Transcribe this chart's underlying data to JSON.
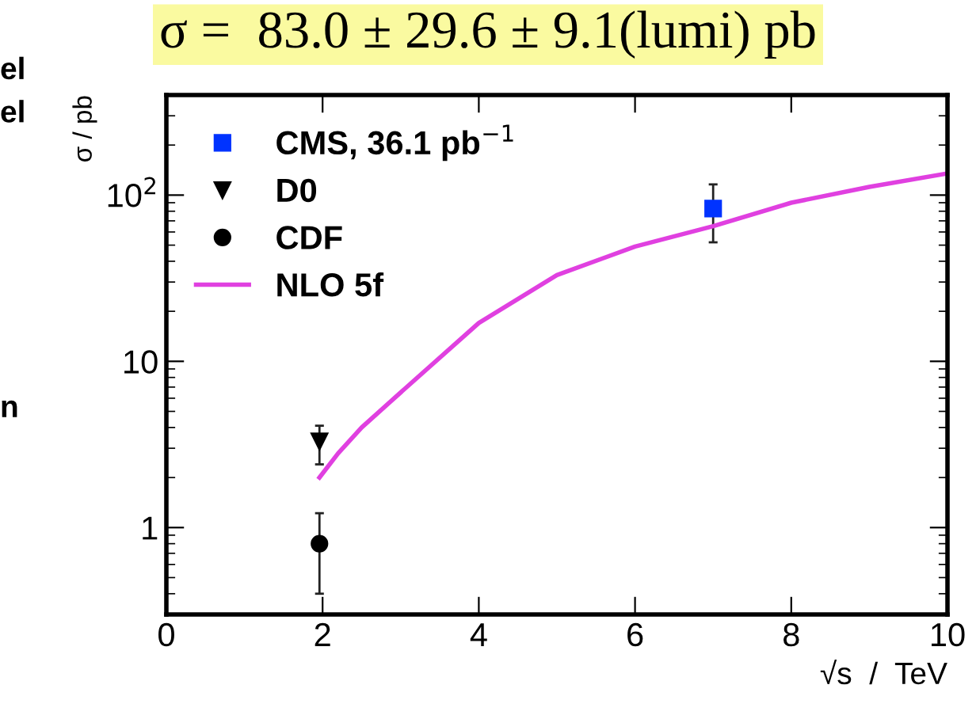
{
  "chart_data": {
    "type": "scatter",
    "title": "σ =  83.0 ± 29.6 ± 9.1(lumi) pb",
    "xlabel": "√s  /  TeV",
    "ylabel": "σ / pb",
    "log": "y",
    "xlim": [
      0,
      10
    ],
    "ylim": [
      0.3,
      400
    ],
    "xticks": [
      0,
      2,
      4,
      6,
      8,
      10
    ],
    "yticks": [
      1,
      10,
      {
        "value": 100,
        "label": "10$^{2}$"
      }
    ],
    "grid": false,
    "legend": "top left",
    "annotations": [
      "el",
      "el",
      "n"
    ],
    "series": [
      {
        "name": "CMS, 36.1 pb$^{−1}$",
        "marker": "square",
        "color": "#0033ff",
        "x": [
          7
        ],
        "values": [
          83
        ],
        "errors": [
          [
            52,
            116
          ]
        ]
      },
      {
        "name": "D0",
        "marker": "triangle",
        "color": "#000000",
        "x": [
          1.96
        ],
        "values": [
          3.3
        ],
        "errors": [
          [
            2.4,
            4.1
          ]
        ]
      },
      {
        "name": "CDF",
        "marker": "circle",
        "color": "#000000",
        "x": [
          1.96
        ],
        "values": [
          0.8
        ],
        "errors": [
          [
            0.4,
            1.22
          ]
        ]
      },
      {
        "name": "NLO 5f",
        "type": "line",
        "marker": "none",
        "line_style": "solid",
        "color": "#e040e0",
        "x": [
          1.96,
          2.2,
          2.5,
          3,
          4,
          5,
          6,
          7,
          8,
          9,
          10
        ],
        "values": [
          2.0,
          2.8,
          4.0,
          6.5,
          17,
          33,
          49,
          65,
          90,
          112,
          135
        ]
      }
    ]
  }
}
